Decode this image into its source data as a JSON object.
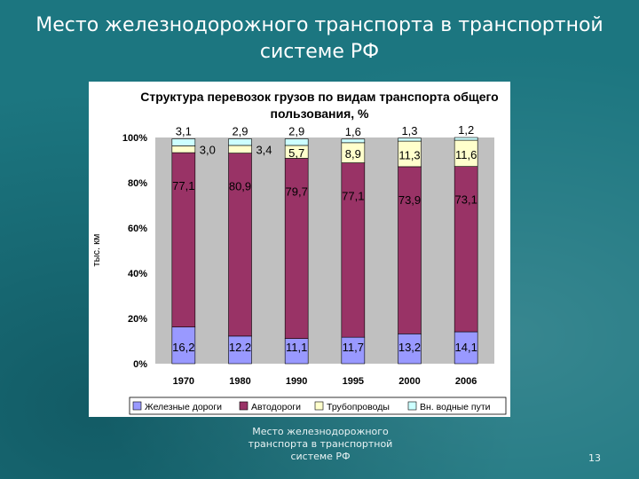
{
  "slide": {
    "title_line1": "Место железнодорожного транспорта в транспортной",
    "title_line2": "системе РФ",
    "footer_line1": "Место железнодорожного",
    "footer_line2": "транспорта в транспортной",
    "footer_line3": "системе РФ",
    "page_number": "13"
  },
  "colors": {
    "background": "#1c7680",
    "railway": "#9999ff",
    "roads": "#993366",
    "pipelines": "#ffffcc",
    "waterways": "#ccffff",
    "plot_area": "#c0c0c0",
    "chart_title": "#000080"
  },
  "chart_data": {
    "type": "bar",
    "stacked": true,
    "title_line1": "Структура перевозок грузов по видам транспорта общего",
    "title_line2": "пользования, %",
    "ylabel": "тыс. км",
    "ylim": [
      0,
      100
    ],
    "yticks": [
      "0%",
      "20%",
      "40%",
      "60%",
      "80%",
      "100%"
    ],
    "categories": [
      "1970",
      "1980",
      "1990",
      "1995",
      "2000",
      "2006"
    ],
    "series": [
      {
        "name": "Железные дороги",
        "values": [
          16.2,
          12.2,
          11.1,
          11.7,
          13.2,
          14.1
        ],
        "labels": [
          "16,2",
          "12.2",
          "11,1",
          "11,7",
          "13,2",
          "14,1"
        ]
      },
      {
        "name": "Автодороги",
        "values": [
          77.1,
          80.9,
          79.7,
          77.1,
          73.9,
          73.1
        ],
        "labels": [
          "77,1",
          "80,9",
          "79,7",
          "77,1",
          "73,9",
          "73,1"
        ]
      },
      {
        "name": "Трубопроводы",
        "values": [
          3.0,
          3.4,
          5.7,
          8.9,
          11.3,
          11.6
        ],
        "labels": [
          "3,0",
          "3,4",
          "5,7",
          "8,9",
          "11,3",
          "11,6"
        ]
      },
      {
        "name": "Вн. водные пути",
        "values": [
          3.1,
          2.9,
          2.9,
          1.6,
          1.3,
          1.2
        ],
        "labels": [
          "3,1",
          "2,9",
          "2,9",
          "1,6",
          "1,3",
          "1,2"
        ]
      }
    ],
    "legend_position": "bottom",
    "grid": false
  }
}
